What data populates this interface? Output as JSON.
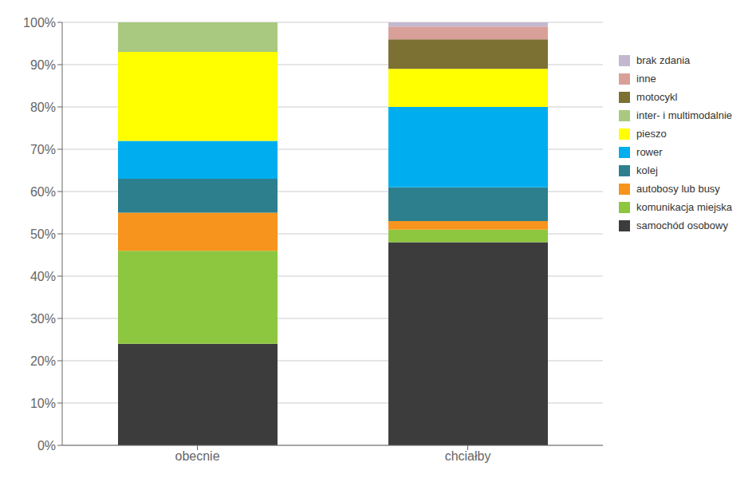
{
  "chart_data": {
    "type": "bar",
    "stacked": true,
    "categories": [
      "obecnie",
      "chciałby"
    ],
    "series": [
      {
        "name": "samochód osobowy",
        "color": "#3c3c3c",
        "values": [
          24.0,
          48.0
        ]
      },
      {
        "name": "komunikacja miejska",
        "color": "#8dc63f",
        "values": [
          22.0,
          3.0
        ]
      },
      {
        "name": "autobosy lub busy",
        "color": "#f7941d",
        "values": [
          9.0,
          2.0
        ]
      },
      {
        "name": "kolej",
        "color": "#2e7f8e",
        "values": [
          8.0,
          8.0
        ]
      },
      {
        "name": "rower",
        "color": "#00aeef",
        "values": [
          9.0,
          19.0
        ]
      },
      {
        "name": "pieszo",
        "color": "#ffff00",
        "values": [
          21.0,
          9.0
        ]
      },
      {
        "name": "inter- i multimodalnie",
        "color": "#a8c97f",
        "values": [
          7.0,
          0.0
        ]
      },
      {
        "name": "motocykl",
        "color": "#7c7033",
        "values": [
          0.0,
          7.0
        ]
      },
      {
        "name": "inne",
        "color": "#d9a09a",
        "values": [
          0.0,
          3.0
        ]
      },
      {
        "name": "brak zdania",
        "color": "#c4b8d0",
        "values": [
          0.0,
          1.0
        ]
      }
    ],
    "ylim": [
      0,
      100
    ],
    "yticks": [
      {
        "value": 0,
        "label": "0%"
      },
      {
        "value": 10,
        "label": "10%"
      },
      {
        "value": 20,
        "label": "20%"
      },
      {
        "value": 30,
        "label": "30%"
      },
      {
        "value": 40,
        "label": "40%"
      },
      {
        "value": 50,
        "label": "50%"
      },
      {
        "value": 60,
        "label": "60%"
      },
      {
        "value": 70,
        "label": "70%"
      },
      {
        "value": 80,
        "label": "80%"
      },
      {
        "value": 90,
        "label": "90%"
      },
      {
        "value": 100,
        "label": "100%"
      }
    ],
    "grid": true,
    "legend": "right"
  }
}
